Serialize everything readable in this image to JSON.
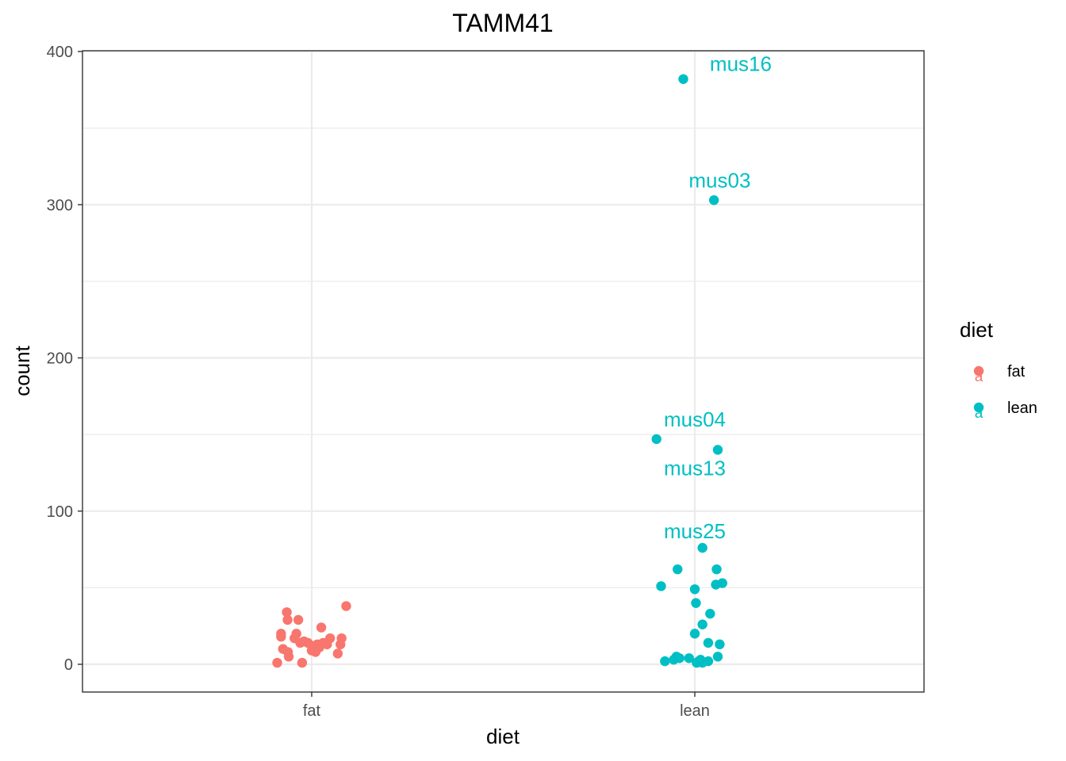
{
  "chart_data": {
    "type": "scatter",
    "title": "TAMM41",
    "xlabel": "diet",
    "ylabel": "count",
    "categories": [
      "fat",
      "lean"
    ],
    "ylim": [
      -18,
      400
    ],
    "y_ticks": [
      0,
      100,
      200,
      300,
      400
    ],
    "grid": true,
    "legend": {
      "title": "diet",
      "position": "right",
      "entries": [
        {
          "label": "fat",
          "color": "#F8766D"
        },
        {
          "label": "lean",
          "color": "#00BFC4"
        }
      ]
    },
    "series": [
      {
        "name": "fat",
        "color": "#F8766D",
        "points": [
          {
            "x": -0.09,
            "y": 1
          },
          {
            "x": -0.08,
            "y": 18
          },
          {
            "x": -0.08,
            "y": 20
          },
          {
            "x": -0.075,
            "y": 10
          },
          {
            "x": -0.065,
            "y": 34
          },
          {
            "x": -0.063,
            "y": 29
          },
          {
            "x": -0.062,
            "y": 8
          },
          {
            "x": -0.06,
            "y": 5
          },
          {
            "x": -0.045,
            "y": 17
          },
          {
            "x": -0.04,
            "y": 20
          },
          {
            "x": -0.035,
            "y": 29
          },
          {
            "x": -0.03,
            "y": 14
          },
          {
            "x": -0.025,
            "y": 1
          },
          {
            "x": -0.02,
            "y": 15
          },
          {
            "x": -0.01,
            "y": 14
          },
          {
            "x": 0.0,
            "y": 9
          },
          {
            "x": 0.005,
            "y": 12
          },
          {
            "x": 0.01,
            "y": 8
          },
          {
            "x": 0.015,
            "y": 13
          },
          {
            "x": 0.02,
            "y": 11
          },
          {
            "x": 0.025,
            "y": 24
          },
          {
            "x": 0.03,
            "y": 14
          },
          {
            "x": 0.04,
            "y": 13
          },
          {
            "x": 0.048,
            "y": 17
          },
          {
            "x": 0.068,
            "y": 7
          },
          {
            "x": 0.075,
            "y": 13
          },
          {
            "x": 0.078,
            "y": 17
          },
          {
            "x": 0.09,
            "y": 38
          }
        ]
      },
      {
        "name": "lean",
        "color": "#00BFC4",
        "points": [
          {
            "x": -0.03,
            "y": 382
          },
          {
            "x": 0.05,
            "y": 303
          },
          {
            "x": -0.1,
            "y": 147
          },
          {
            "x": 0.06,
            "y": 140
          },
          {
            "x": 0.02,
            "y": 76
          },
          {
            "x": -0.045,
            "y": 62
          },
          {
            "x": 0.057,
            "y": 62
          },
          {
            "x": -0.088,
            "y": 51
          },
          {
            "x": 0.055,
            "y": 52
          },
          {
            "x": 0.072,
            "y": 53
          },
          {
            "x": 0.0,
            "y": 49
          },
          {
            "x": 0.003,
            "y": 40
          },
          {
            "x": 0.04,
            "y": 33
          },
          {
            "x": 0.02,
            "y": 26
          },
          {
            "x": 0.0,
            "y": 20
          },
          {
            "x": 0.035,
            "y": 14
          },
          {
            "x": 0.065,
            "y": 13
          },
          {
            "x": -0.078,
            "y": 2
          },
          {
            "x": -0.055,
            "y": 3
          },
          {
            "x": -0.048,
            "y": 5
          },
          {
            "x": -0.04,
            "y": 4
          },
          {
            "x": -0.015,
            "y": 4
          },
          {
            "x": 0.005,
            "y": 1
          },
          {
            "x": 0.01,
            "y": 2
          },
          {
            "x": 0.015,
            "y": 3
          },
          {
            "x": 0.02,
            "y": 1
          },
          {
            "x": 0.035,
            "y": 2
          },
          {
            "x": 0.06,
            "y": 5
          }
        ]
      }
    ],
    "annotations": [
      {
        "text": "mus16",
        "x": 0.12,
        "y": 392,
        "color": "#00BFC4"
      },
      {
        "text": "mus03",
        "x": 0.065,
        "y": 316,
        "color": "#00BFC4"
      },
      {
        "text": "mus04",
        "x": 0.0,
        "y": 160,
        "color": "#00BFC4"
      },
      {
        "text": "mus13",
        "x": 0.0,
        "y": 128,
        "color": "#00BFC4"
      },
      {
        "text": "mus25",
        "x": 0.0,
        "y": 87,
        "color": "#00BFC4"
      }
    ]
  }
}
